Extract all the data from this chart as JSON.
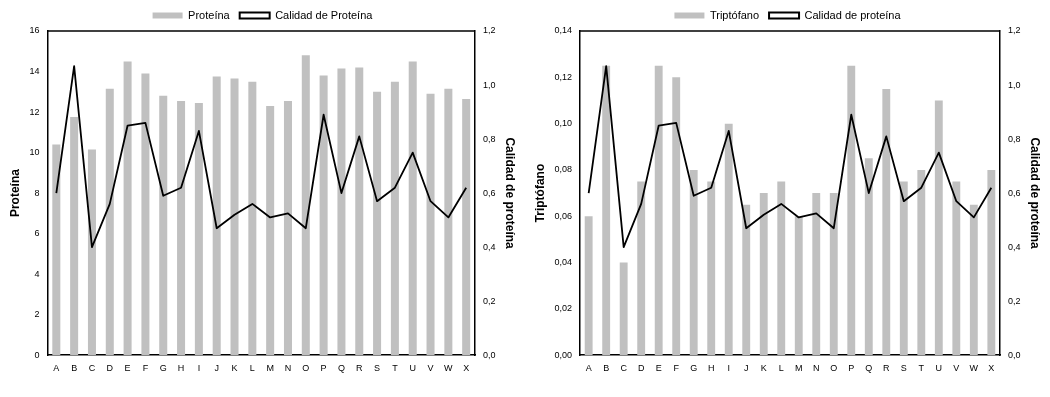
{
  "chart_data": [
    {
      "type": "bar",
      "ylabel": "Proteína",
      "y2label": "Calidad de proteína",
      "categories": [
        "A",
        "B",
        "C",
        "D",
        "E",
        "F",
        "G",
        "H",
        "I",
        "J",
        "K",
        "L",
        "M",
        "N",
        "O",
        "P",
        "Q",
        "R",
        "S",
        "T",
        "U",
        "V",
        "W",
        "X"
      ],
      "series": [
        {
          "name": "Proteína",
          "color": "#c0c0c0",
          "values": [
            10.4,
            11.75,
            10.15,
            13.15,
            14.5,
            13.9,
            12.8,
            12.55,
            12.45,
            13.75,
            13.65,
            13.5,
            12.3,
            12.55,
            14.8,
            13.8,
            14.15,
            14.2,
            13.0,
            13.5,
            14.5,
            12.9,
            13.15,
            12.65
          ]
        },
        {
          "name": "Calidad de Proteína",
          "type": "line",
          "axis": "y2",
          "color": "#000000",
          "values": [
            0.6,
            1.07,
            0.4,
            0.56,
            0.85,
            0.86,
            0.59,
            0.62,
            0.83,
            0.47,
            0.52,
            0.56,
            0.51,
            0.525,
            0.47,
            0.89,
            0.6,
            0.81,
            0.57,
            0.62,
            0.75,
            0.57,
            0.51,
            0.62
          ]
        }
      ],
      "ylim": [
        0,
        16
      ],
      "yticks": [
        0,
        2,
        4,
        6,
        8,
        10,
        12,
        14,
        16
      ],
      "y2lim": [
        0,
        1.2
      ],
      "y2ticks": [
        {
          "value": 0,
          "label": "0,0"
        },
        {
          "value": 0.2,
          "label": "0,2"
        },
        {
          "value": 0.4,
          "label": "0,4"
        },
        {
          "value": 0.6,
          "label": "0,6"
        },
        {
          "value": 0.8,
          "label": "0,8"
        },
        {
          "value": 1,
          "label": "1,0"
        },
        {
          "value": 1.2,
          "label": "1,2"
        }
      ],
      "grid": false,
      "legend": "top",
      "marker": "none"
    },
    {
      "type": "bar",
      "ylabel": "Triptófano",
      "y2label": "Calidad de proteína",
      "categories": [
        "A",
        "B",
        "C",
        "D",
        "E",
        "F",
        "G",
        "H",
        "I",
        "J",
        "K",
        "L",
        "M",
        "N",
        "O",
        "P",
        "Q",
        "R",
        "S",
        "T",
        "U",
        "V",
        "W",
        "X"
      ],
      "series": [
        {
          "name": "Triptófano",
          "color": "#c0c0c0",
          "values": [
            0.06,
            0.125,
            0.04,
            0.075,
            0.125,
            0.12,
            0.08,
            0.075,
            0.1,
            0.065,
            0.07,
            0.075,
            0.06,
            0.07,
            0.07,
            0.125,
            0.085,
            0.115,
            0.075,
            0.08,
            0.11,
            0.075,
            0.065,
            0.08
          ]
        },
        {
          "name": "Calidad de proteína",
          "type": "line",
          "axis": "y2",
          "color": "#000000",
          "values": [
            0.6,
            1.07,
            0.4,
            0.56,
            0.85,
            0.86,
            0.59,
            0.62,
            0.83,
            0.47,
            0.52,
            0.56,
            0.51,
            0.525,
            0.47,
            0.89,
            0.6,
            0.81,
            0.57,
            0.62,
            0.75,
            0.57,
            0.51,
            0.62
          ]
        }
      ],
      "ylim": [
        0,
        0.14
      ],
      "yticks": [
        {
          "value": 0,
          "label": "0,00"
        },
        {
          "value": 0.02,
          "label": "0,02"
        },
        {
          "value": 0.04,
          "label": "0,04"
        },
        {
          "value": 0.06,
          "label": "0,06"
        },
        {
          "value": 0.08,
          "label": "0,08"
        },
        {
          "value": 0.1,
          "label": "0,10"
        },
        {
          "value": 0.12,
          "label": "0,12"
        },
        {
          "value": 0.14,
          "label": "0,14"
        }
      ],
      "y2lim": [
        0,
        1.2
      ],
      "y2ticks": [
        {
          "value": 0,
          "label": "0,0"
        },
        {
          "value": 0.2,
          "label": "0,2"
        },
        {
          "value": 0.4,
          "label": "0,4"
        },
        {
          "value": 0.6,
          "label": "0,6"
        },
        {
          "value": 0.8,
          "label": "0,8"
        },
        {
          "value": 1,
          "label": "1,0"
        },
        {
          "value": 1.2,
          "label": "1,2"
        }
      ],
      "grid": false,
      "legend": "top",
      "marker": "none"
    }
  ]
}
